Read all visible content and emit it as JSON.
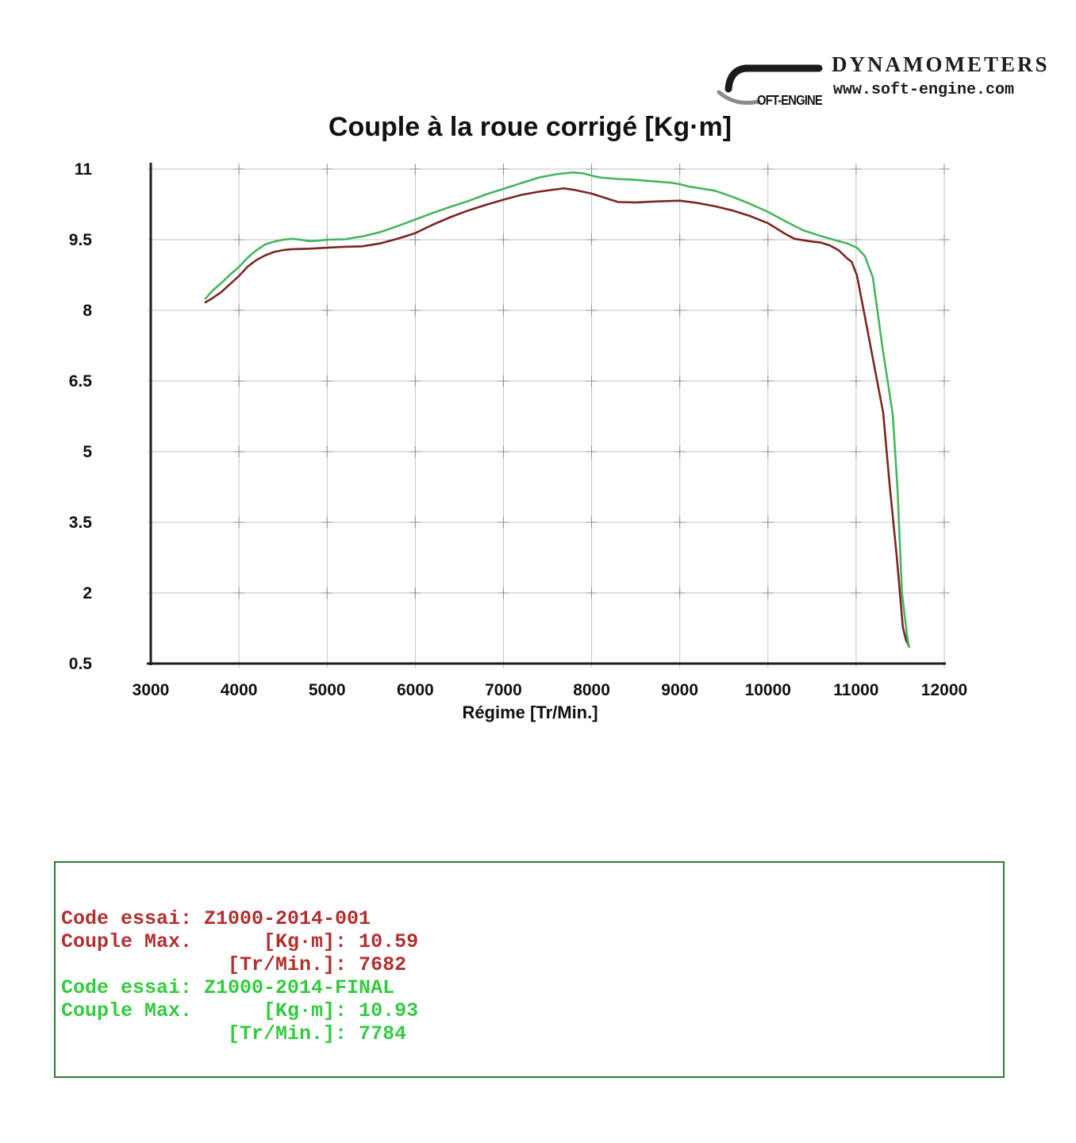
{
  "header": {
    "brand_line1": "DYNAMOMETERS",
    "brand_line2": "www.soft-engine.com",
    "logo_text": "OFT-ENGINE"
  },
  "chart_data": {
    "type": "line",
    "title": "Couple à la roue corrigé [Kg·m]",
    "xlabel": "Régime [Tr/Min.]",
    "ylabel": "",
    "xlim": [
      3000,
      12000
    ],
    "ylim": [
      0.5,
      11
    ],
    "x_ticks": [
      3000,
      4000,
      5000,
      6000,
      7000,
      8000,
      9000,
      10000,
      11000,
      12000
    ],
    "y_ticks": [
      0.5,
      2,
      3.5,
      5,
      6.5,
      8,
      9.5,
      11
    ],
    "grid": true,
    "legend_position": "none",
    "colors": {
      "axis": "#1c1c1c",
      "grid": "#c3c3c3",
      "grid_cross": "#8f8f8f",
      "tick_label": "#101010"
    },
    "series": [
      {
        "name": "Z1000-2014-001",
        "color": "#7b2622",
        "max_value": 10.59,
        "max_rpm": 7682,
        "points": [
          [
            3620,
            8.17
          ],
          [
            3700,
            8.26
          ],
          [
            3800,
            8.39
          ],
          [
            3900,
            8.56
          ],
          [
            4000,
            8.73
          ],
          [
            4100,
            8.93
          ],
          [
            4200,
            9.07
          ],
          [
            4300,
            9.17
          ],
          [
            4400,
            9.24
          ],
          [
            4500,
            9.28
          ],
          [
            4600,
            9.3
          ],
          [
            4800,
            9.31
          ],
          [
            5000,
            9.33
          ],
          [
            5200,
            9.35
          ],
          [
            5400,
            9.36
          ],
          [
            5600,
            9.42
          ],
          [
            5800,
            9.52
          ],
          [
            6000,
            9.64
          ],
          [
            6200,
            9.82
          ],
          [
            6400,
            9.98
          ],
          [
            6600,
            10.12
          ],
          [
            6800,
            10.24
          ],
          [
            7000,
            10.35
          ],
          [
            7200,
            10.45
          ],
          [
            7400,
            10.52
          ],
          [
            7600,
            10.57
          ],
          [
            7682,
            10.59
          ],
          [
            7800,
            10.56
          ],
          [
            8000,
            10.48
          ],
          [
            8200,
            10.36
          ],
          [
            8300,
            10.3
          ],
          [
            8500,
            10.29
          ],
          [
            8700,
            10.31
          ],
          [
            9000,
            10.33
          ],
          [
            9200,
            10.28
          ],
          [
            9400,
            10.21
          ],
          [
            9600,
            10.12
          ],
          [
            9800,
            10.0
          ],
          [
            10000,
            9.85
          ],
          [
            10200,
            9.62
          ],
          [
            10300,
            9.52
          ],
          [
            10500,
            9.46
          ],
          [
            10600,
            9.44
          ],
          [
            10700,
            9.38
          ],
          [
            10800,
            9.28
          ],
          [
            10900,
            9.1
          ],
          [
            10950,
            9.03
          ],
          [
            11010,
            8.74
          ],
          [
            11100,
            7.86
          ],
          [
            11200,
            6.88
          ],
          [
            11307,
            5.83
          ],
          [
            11380,
            4.3
          ],
          [
            11460,
            2.79
          ],
          [
            11530,
            1.27
          ],
          [
            11565,
            1.0
          ],
          [
            11600,
            0.87
          ]
        ]
      },
      {
        "name": "Z1000-2014-FINAL",
        "color": "#46b55f",
        "max_value": 10.93,
        "max_rpm": 7784,
        "points": [
          [
            3620,
            8.25
          ],
          [
            3700,
            8.42
          ],
          [
            3800,
            8.58
          ],
          [
            3900,
            8.76
          ],
          [
            4000,
            8.92
          ],
          [
            4100,
            9.12
          ],
          [
            4200,
            9.28
          ],
          [
            4300,
            9.4
          ],
          [
            4400,
            9.46
          ],
          [
            4500,
            9.5
          ],
          [
            4600,
            9.52
          ],
          [
            4700,
            9.5
          ],
          [
            4800,
            9.47
          ],
          [
            4900,
            9.48
          ],
          [
            5000,
            9.5
          ],
          [
            5200,
            9.51
          ],
          [
            5400,
            9.57
          ],
          [
            5600,
            9.66
          ],
          [
            5800,
            9.79
          ],
          [
            6000,
            9.93
          ],
          [
            6200,
            10.07
          ],
          [
            6400,
            10.2
          ],
          [
            6600,
            10.32
          ],
          [
            6800,
            10.46
          ],
          [
            7000,
            10.58
          ],
          [
            7200,
            10.7
          ],
          [
            7400,
            10.82
          ],
          [
            7600,
            10.89
          ],
          [
            7784,
            10.93
          ],
          [
            7900,
            10.91
          ],
          [
            8000,
            10.86
          ],
          [
            8100,
            10.82
          ],
          [
            8300,
            10.79
          ],
          [
            8500,
            10.77
          ],
          [
            8700,
            10.74
          ],
          [
            8900,
            10.71
          ],
          [
            9000,
            10.68
          ],
          [
            9100,
            10.63
          ],
          [
            9200,
            10.6
          ],
          [
            9400,
            10.54
          ],
          [
            9600,
            10.41
          ],
          [
            9800,
            10.26
          ],
          [
            10000,
            10.09
          ],
          [
            10200,
            9.89
          ],
          [
            10400,
            9.7
          ],
          [
            10600,
            9.58
          ],
          [
            10800,
            9.47
          ],
          [
            10900,
            9.42
          ],
          [
            11010,
            9.33
          ],
          [
            11100,
            9.15
          ],
          [
            11190,
            8.7
          ],
          [
            11300,
            7.2
          ],
          [
            11415,
            5.8
          ],
          [
            11470,
            4.2
          ],
          [
            11520,
            2.0
          ],
          [
            11577,
            1.1
          ],
          [
            11600,
            0.85
          ]
        ]
      }
    ]
  },
  "legend": {
    "border_color": "#2f7a33",
    "lines": [
      {
        "text": "Code essai: Z1000-2014-001",
        "color": "#b23030"
      },
      {
        "text": "Couple Max.      [Kg·m]: 10.59",
        "color": "#b23030"
      },
      {
        "text": "              [Tr/Min.]: 7682",
        "color": "#b23030"
      },
      {
        "text": "Code essai: Z1000-2014-FINAL",
        "color": "#33cb3f"
      },
      {
        "text": "Couple Max.      [Kg·m]: 10.93",
        "color": "#33cb3f"
      },
      {
        "text": "              [Tr/Min.]: 7784",
        "color": "#33cb3f"
      }
    ]
  }
}
